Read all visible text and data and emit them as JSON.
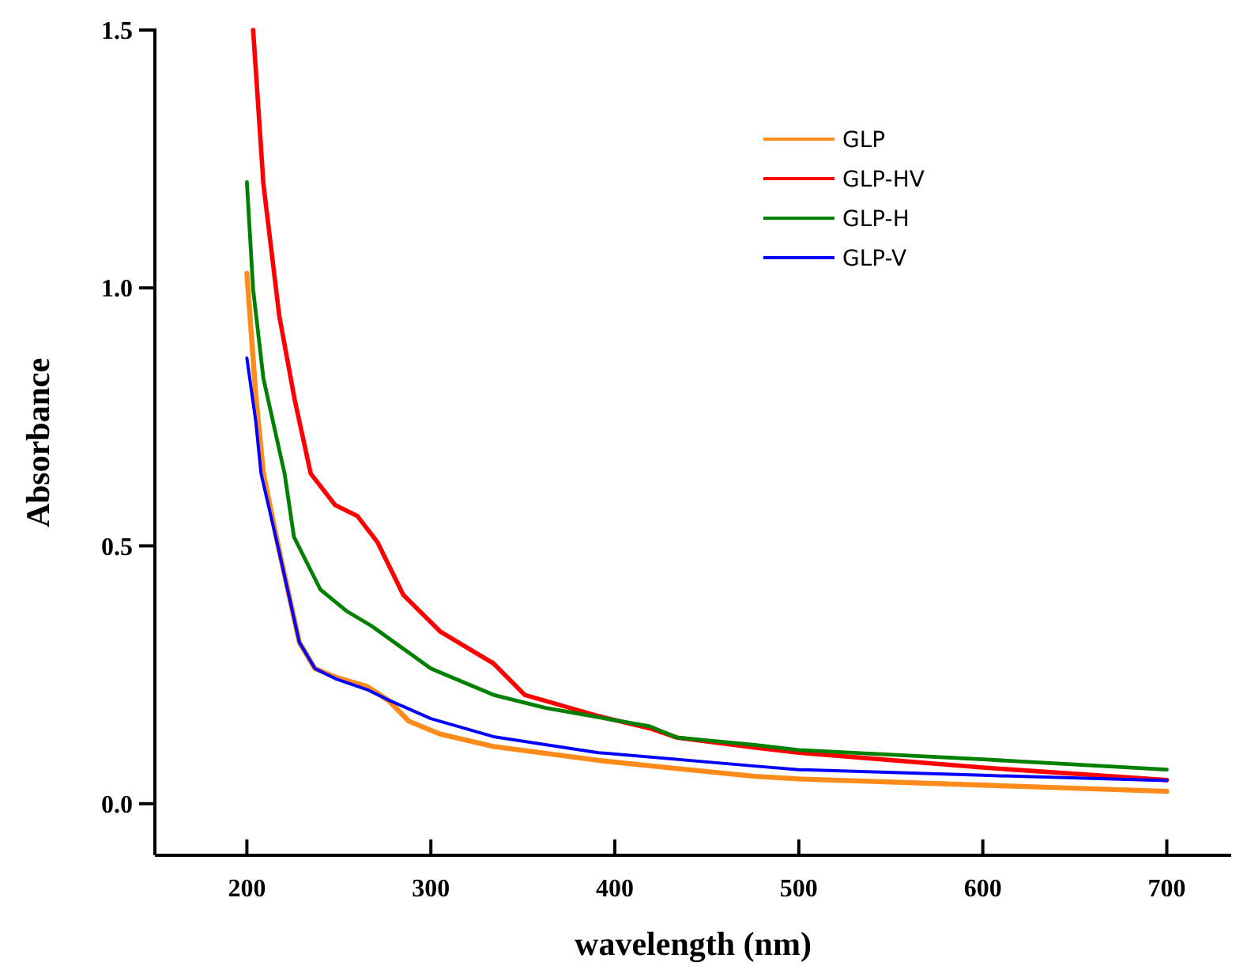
{
  "chart_data": {
    "type": "line",
    "xlabel": "wavelength (nm)",
    "ylabel": "Absorbance",
    "xlim": [
      150,
      735
    ],
    "ylim": [
      -0.1,
      1.5
    ],
    "xticks": [
      200,
      300,
      400,
      500,
      600,
      700
    ],
    "yticks": [
      {
        "value": 0,
        "label": "0.0"
      },
      {
        "value": 0.5,
        "label": "0.5"
      },
      {
        "value": 1,
        "label": "1.0"
      },
      {
        "value": 1.5,
        "label": "1.5"
      }
    ],
    "grid": false,
    "legend": "top right",
    "marker": "none",
    "line_style": "solid",
    "series": [
      {
        "name": "GLP",
        "color": "#ff8c1a",
        "x": [
          200,
          204.8,
          209,
          217,
          228.5,
          237,
          248.4,
          265.5,
          277,
          288,
          305,
          334,
          391,
          434,
          476,
          500,
          600,
          700
        ],
        "values": [
          1.028,
          0.793,
          0.64,
          0.5,
          0.313,
          0.262,
          0.245,
          0.227,
          0.2,
          0.16,
          0.135,
          0.111,
          0.084,
          0.068,
          0.053,
          0.048,
          0.036,
          0.024
        ]
      },
      {
        "name": "GLP-HV",
        "color": "#ff0000",
        "x": [
          203.4,
          209,
          217.6,
          226,
          234.7,
          248,
          260,
          271,
          285,
          305,
          334,
          351,
          391,
          420,
          434,
          476,
          500,
          600,
          700
        ],
        "values": [
          1.5,
          1.201,
          0.946,
          0.783,
          0.64,
          0.579,
          0.558,
          0.507,
          0.405,
          0.334,
          0.272,
          0.211,
          0.17,
          0.145,
          0.128,
          0.109,
          0.099,
          0.07,
          0.046
        ]
      },
      {
        "name": "GLP-H",
        "color": "#008000",
        "x": [
          200,
          203.4,
          209,
          220.5,
          225.6,
          240,
          254,
          268,
          300,
          334,
          362,
          419,
          434,
          476,
          500,
          600,
          700
        ],
        "values": [
          1.205,
          0.997,
          0.824,
          0.64,
          0.517,
          0.415,
          0.374,
          0.344,
          0.262,
          0.211,
          0.186,
          0.15,
          0.128,
          0.114,
          0.104,
          0.086,
          0.066
        ]
      },
      {
        "name": "GLP-V",
        "color": "#0000ff",
        "x": [
          200,
          204.8,
          207.7,
          217,
          228.5,
          237,
          248.4,
          265.5,
          277,
          300,
          334,
          391,
          476,
          500,
          600,
          700
        ],
        "values": [
          0.864,
          0.742,
          0.64,
          0.497,
          0.313,
          0.262,
          0.242,
          0.221,
          0.201,
          0.165,
          0.13,
          0.099,
          0.073,
          0.066,
          0.055,
          0.045
        ]
      }
    ]
  }
}
